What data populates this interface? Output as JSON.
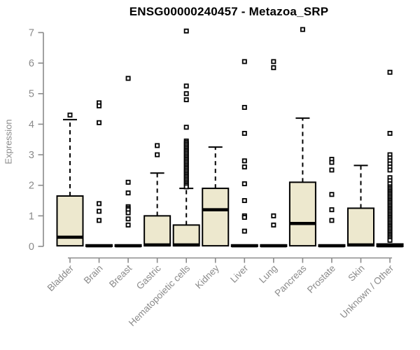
{
  "chart_data": {
    "type": "boxplot",
    "title": "ENSG00000240457 - Metazoa_SRP",
    "ylabel": "Expression",
    "xlabel": "",
    "ylim": [
      0,
      7
    ],
    "yticks": [
      0,
      1,
      2,
      3,
      4,
      5,
      6,
      7
    ],
    "grid": false,
    "legend": "none",
    "colors": {
      "box_fill": "#ede8ce",
      "box_stroke": "#000000",
      "median": "#000000",
      "whisker": "#000000",
      "axis": "#8a8a8a",
      "tick_label": "#8a8a8a",
      "title": "#000000",
      "background": "#ffffff"
    },
    "categories": [
      "Bladder",
      "Brain",
      "Breast",
      "Gastric",
      "Hematopoietic cells",
      "Kidney",
      "Liver",
      "Lung",
      "Pancreas",
      "Prostate",
      "Skin",
      "Unknown / Other"
    ],
    "series": [
      {
        "name": "Bladder",
        "low": 0.02,
        "q1": 0.02,
        "median": 0.3,
        "q3": 1.65,
        "high": 4.15,
        "outliers": [
          4.3
        ]
      },
      {
        "name": "Brain",
        "low": 0,
        "q1": 0,
        "median": 0.02,
        "q3": 0.05,
        "high": 0.05,
        "outliers": [
          4.7,
          4.6,
          4.05,
          1.4,
          1.15,
          0.85
        ]
      },
      {
        "name": "Breast",
        "low": 0,
        "q1": 0,
        "median": 0.02,
        "q3": 0.05,
        "high": 0.05,
        "outliers": [
          5.5,
          2.1,
          1.75,
          1.3,
          1.25,
          1.2,
          1.1,
          0.9,
          0.7
        ]
      },
      {
        "name": "Gastric",
        "low": 0.02,
        "q1": 0.02,
        "median": 0.05,
        "q3": 1.0,
        "high": 2.4,
        "outliers": [
          3.3,
          3.0
        ]
      },
      {
        "name": "Hematopoietic cells",
        "low": 0.02,
        "q1": 0.02,
        "median": 0.05,
        "q3": 0.7,
        "high": 1.9,
        "outliers": [
          7.05,
          5.25,
          5.0,
          4.8,
          3.9,
          3.45,
          3.4,
          3.35,
          3.3,
          3.25,
          3.2,
          3.15,
          3.1,
          3.05,
          3.0,
          2.95,
          2.9,
          2.85,
          2.8,
          2.75,
          2.7,
          2.65,
          2.6,
          2.55,
          2.5,
          2.45,
          2.4,
          2.35,
          2.3,
          2.25,
          2.2,
          2.15,
          2.1,
          2.05,
          2.0,
          1.95
        ]
      },
      {
        "name": "Kidney",
        "low": 0.02,
        "q1": 0.02,
        "median": 1.2,
        "q3": 1.9,
        "high": 3.25,
        "outliers": []
      },
      {
        "name": "Liver",
        "low": 0,
        "q1": 0,
        "median": 0.02,
        "q3": 0.05,
        "high": 0.05,
        "outliers": [
          6.05,
          4.55,
          3.7,
          2.8,
          2.6,
          2.05,
          1.5,
          1.0,
          0.95,
          0.5
        ]
      },
      {
        "name": "Lung",
        "low": 0,
        "q1": 0,
        "median": 0.02,
        "q3": 0.05,
        "high": 0.05,
        "outliers": [
          6.05,
          5.85,
          1.0,
          0.7
        ]
      },
      {
        "name": "Pancreas",
        "low": 0.02,
        "q1": 0.02,
        "median": 0.75,
        "q3": 2.1,
        "high": 4.2,
        "outliers": [
          7.1
        ]
      },
      {
        "name": "Prostate",
        "low": 0,
        "q1": 0,
        "median": 0.02,
        "q3": 0.05,
        "high": 0.05,
        "outliers": [
          2.85,
          2.75,
          2.5,
          1.7,
          1.2,
          0.85
        ]
      },
      {
        "name": "Skin",
        "low": 0.02,
        "q1": 0.02,
        "median": 0.05,
        "q3": 1.25,
        "high": 2.65,
        "outliers": []
      },
      {
        "name": "Unknown / Other",
        "low": 0,
        "q1": 0,
        "median": 0.02,
        "q3": 0.08,
        "high": 0.15,
        "outliers": [
          5.7,
          3.7,
          3.0,
          2.9,
          2.8,
          2.7,
          2.6,
          2.5,
          2.25,
          2.15,
          2.05,
          1.95,
          1.9,
          1.85,
          1.8,
          1.75,
          1.7,
          1.65,
          1.6,
          1.55,
          1.5,
          1.45,
          1.4,
          1.35,
          1.3,
          1.25,
          1.2,
          1.15,
          1.1,
          1.05,
          1.0,
          0.95,
          0.9,
          0.85,
          0.8,
          0.75,
          0.7,
          0.65,
          0.6,
          0.55,
          0.5,
          0.45,
          0.4,
          0.35,
          0.3,
          0.25,
          0.2
        ]
      }
    ]
  }
}
